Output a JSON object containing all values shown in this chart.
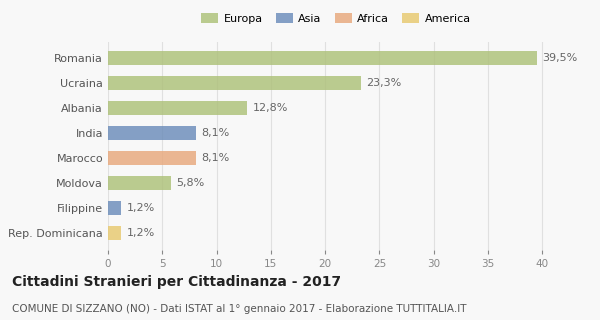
{
  "categories": [
    "Romania",
    "Ucraina",
    "Albania",
    "India",
    "Marocco",
    "Moldova",
    "Filippine",
    "Rep. Dominicana"
  ],
  "values": [
    39.5,
    23.3,
    12.8,
    8.1,
    8.1,
    5.8,
    1.2,
    1.2
  ],
  "labels": [
    "39,5%",
    "23,3%",
    "12,8%",
    "8,1%",
    "8,1%",
    "5,8%",
    "1,2%",
    "1,2%"
  ],
  "colors": [
    "#adc178",
    "#adc178",
    "#adc178",
    "#6b8cba",
    "#e8a87c",
    "#adc178",
    "#6b8cba",
    "#e8c96e"
  ],
  "legend_labels": [
    "Europa",
    "Asia",
    "Africa",
    "America"
  ],
  "legend_colors": [
    "#adc178",
    "#6b8cba",
    "#e8a87c",
    "#e8c96e"
  ],
  "title": "Cittadini Stranieri per Cittadinanza - 2017",
  "subtitle": "COMUNE DI SIZZANO (NO) - Dati ISTAT al 1° gennaio 2017 - Elaborazione TUTTITALIA.IT",
  "xlim": [
    0,
    42
  ],
  "xticks": [
    0,
    5,
    10,
    15,
    20,
    25,
    30,
    35,
    40
  ],
  "background_color": "#f8f8f8",
  "grid_color": "#e0e0e0",
  "title_fontsize": 10,
  "subtitle_fontsize": 7.5,
  "label_fontsize": 8,
  "tick_fontsize": 7.5,
  "bar_height": 0.55
}
